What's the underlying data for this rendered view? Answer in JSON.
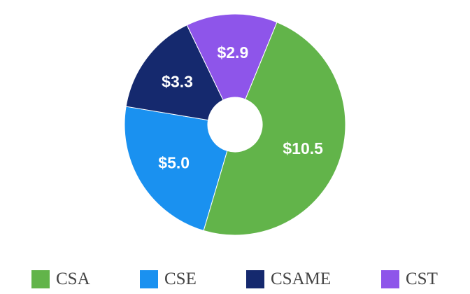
{
  "chart_data": {
    "type": "pie",
    "donut": true,
    "categories": [
      "CSA",
      "CSE",
      "CSAME",
      "CST"
    ],
    "values": [
      10.5,
      5.0,
      3.3,
      2.9
    ],
    "data_labels": [
      "$10.5",
      "$5.0",
      "$3.3",
      "$2.9"
    ],
    "colors": [
      "#62b44a",
      "#1a91f0",
      "#15296e",
      "#8e55ea"
    ],
    "legend_position": "bottom",
    "title": ""
  }
}
